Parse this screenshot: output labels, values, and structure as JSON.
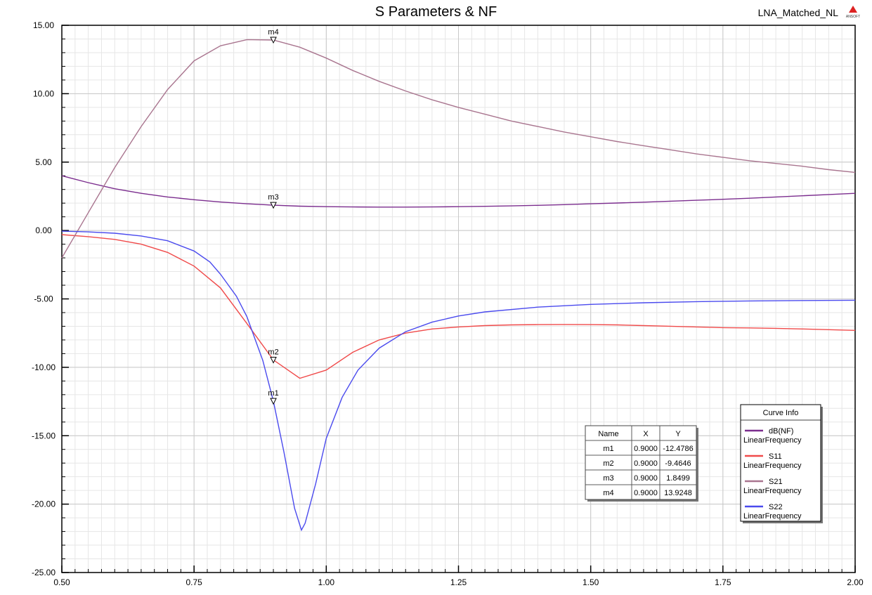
{
  "header": {
    "title": "S Parameters & NF",
    "design_name": "LNA_Matched_NL",
    "logo_text": "ANSOFT"
  },
  "chart_data": {
    "type": "line",
    "title": "S Parameters & NF",
    "xlim": [
      0.5,
      2.0
    ],
    "ylim": [
      -25,
      15
    ],
    "x_ticks": [
      {
        "v": 0.5,
        "label": "0.50"
      },
      {
        "v": 0.75,
        "label": "0.75"
      },
      {
        "v": 1.0,
        "label": "1.00"
      },
      {
        "v": 1.25,
        "label": "1.25"
      },
      {
        "v": 1.5,
        "label": "1.50"
      },
      {
        "v": 1.75,
        "label": "1.75"
      },
      {
        "v": 2.0,
        "label": "2.00"
      }
    ],
    "y_ticks": [
      {
        "v": 15,
        "label": "15.00"
      },
      {
        "v": 10,
        "label": "10.00"
      },
      {
        "v": 5,
        "label": "5.00"
      },
      {
        "v": 0,
        "label": "0.00"
      },
      {
        "v": -5,
        "label": "-5.00"
      },
      {
        "v": -10,
        "label": "-10.00"
      },
      {
        "v": -15,
        "label": "-15.00"
      },
      {
        "v": -20,
        "label": "-20.00"
      },
      {
        "v": -25,
        "label": "-25.00"
      }
    ],
    "grid": true,
    "legend_position": "bottom-right",
    "series": [
      {
        "name": "dB(NF)",
        "sub": "LinearFrequency",
        "color": "#7b2d8e",
        "x": [
          0.5,
          0.55,
          0.6,
          0.65,
          0.7,
          0.75,
          0.8,
          0.85,
          0.9,
          0.95,
          1.0,
          1.05,
          1.1,
          1.15,
          1.2,
          1.25,
          1.3,
          1.35,
          1.4,
          1.45,
          1.5,
          1.55,
          1.6,
          1.65,
          1.7,
          1.75,
          1.8,
          1.85,
          1.9,
          1.95,
          2.0
        ],
        "y": [
          4.0,
          3.5,
          3.05,
          2.72,
          2.45,
          2.25,
          2.08,
          1.95,
          1.85,
          1.78,
          1.74,
          1.72,
          1.71,
          1.71,
          1.72,
          1.74,
          1.77,
          1.8,
          1.84,
          1.89,
          1.95,
          2.01,
          2.07,
          2.14,
          2.21,
          2.28,
          2.36,
          2.45,
          2.54,
          2.63,
          2.72
        ]
      },
      {
        "name": "S11",
        "sub": "LinearFrequency",
        "color": "#f04a4a",
        "x": [
          0.5,
          0.55,
          0.6,
          0.65,
          0.7,
          0.75,
          0.8,
          0.85,
          0.9,
          0.95,
          1.0,
          1.05,
          1.1,
          1.15,
          1.2,
          1.25,
          1.3,
          1.35,
          1.4,
          1.45,
          1.5,
          1.55,
          1.6,
          1.65,
          1.7,
          1.75,
          1.8,
          1.85,
          1.9,
          1.95,
          2.0
        ],
        "y": [
          -0.3,
          -0.45,
          -0.65,
          -1.0,
          -1.6,
          -2.6,
          -4.2,
          -6.8,
          -9.46,
          -10.8,
          -10.2,
          -8.9,
          -8.0,
          -7.5,
          -7.2,
          -7.05,
          -6.95,
          -6.9,
          -6.88,
          -6.87,
          -6.88,
          -6.9,
          -6.95,
          -7.0,
          -7.05,
          -7.1,
          -7.12,
          -7.15,
          -7.2,
          -7.25,
          -7.3
        ]
      },
      {
        "name": "S21",
        "sub": "LinearFrequency",
        "color": "#a9758f",
        "x": [
          0.5,
          0.55,
          0.6,
          0.65,
          0.7,
          0.75,
          0.8,
          0.85,
          0.9,
          0.95,
          1.0,
          1.05,
          1.1,
          1.15,
          1.2,
          1.25,
          1.3,
          1.35,
          1.4,
          1.45,
          1.5,
          1.55,
          1.6,
          1.65,
          1.7,
          1.75,
          1.8,
          1.85,
          1.9,
          1.95,
          2.0
        ],
        "y": [
          -2.0,
          1.3,
          4.6,
          7.6,
          10.3,
          12.4,
          13.5,
          13.95,
          13.92,
          13.4,
          12.6,
          11.7,
          10.9,
          10.2,
          9.55,
          9.0,
          8.5,
          8.0,
          7.6,
          7.2,
          6.85,
          6.5,
          6.2,
          5.9,
          5.6,
          5.35,
          5.1,
          4.9,
          4.7,
          4.45,
          4.25
        ]
      },
      {
        "name": "S22",
        "sub": "LinearFrequency",
        "color": "#4a4aee",
        "x": [
          0.5,
          0.55,
          0.6,
          0.65,
          0.7,
          0.75,
          0.78,
          0.8,
          0.83,
          0.85,
          0.88,
          0.9,
          0.92,
          0.94,
          0.953,
          0.96,
          0.98,
          1.0,
          1.03,
          1.06,
          1.1,
          1.15,
          1.2,
          1.25,
          1.3,
          1.4,
          1.5,
          1.6,
          1.7,
          1.8,
          1.9,
          2.0
        ],
        "y": [
          -0.05,
          -0.1,
          -0.2,
          -0.4,
          -0.75,
          -1.5,
          -2.3,
          -3.2,
          -4.8,
          -6.3,
          -9.5,
          -12.48,
          -16.2,
          -20.3,
          -21.9,
          -21.4,
          -18.5,
          -15.2,
          -12.2,
          -10.2,
          -8.6,
          -7.4,
          -6.7,
          -6.25,
          -5.95,
          -5.6,
          -5.4,
          -5.28,
          -5.2,
          -5.15,
          -5.12,
          -5.1
        ]
      }
    ],
    "markers": [
      {
        "name": "m1",
        "x": 0.9,
        "y": -12.4786,
        "series": "S22"
      },
      {
        "name": "m2",
        "x": 0.9,
        "y": -9.4646,
        "series": "S11"
      },
      {
        "name": "m3",
        "x": 0.9,
        "y": 1.8499,
        "series": "dB(NF)"
      },
      {
        "name": "m4",
        "x": 0.9,
        "y": 13.9248,
        "series": "S21"
      }
    ],
    "marker_table": {
      "headers": [
        "Name",
        "X",
        "Y"
      ],
      "rows": [
        [
          "m1",
          "0.9000",
          "-12.4786"
        ],
        [
          "m2",
          "0.9000",
          "-9.4646"
        ],
        [
          "m3",
          "0.9000",
          "1.8499"
        ],
        [
          "m4",
          "0.9000",
          "13.9248"
        ]
      ]
    },
    "legend_title": "Curve Info"
  }
}
